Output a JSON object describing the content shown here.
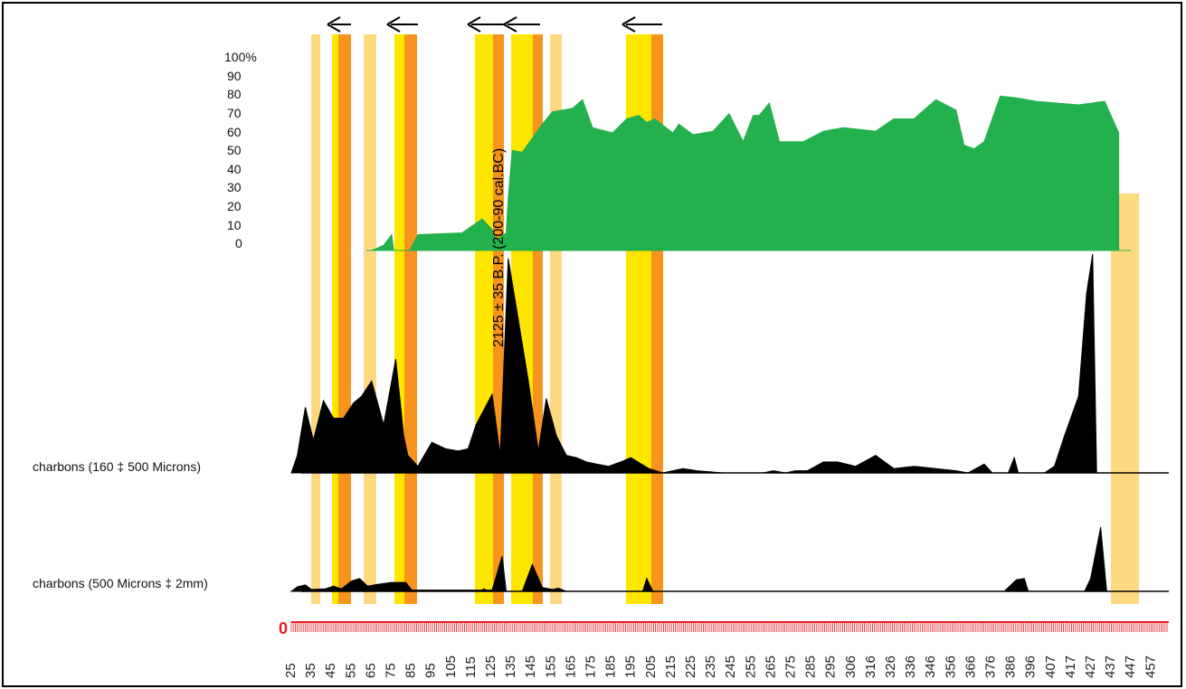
{
  "chart_data": {
    "type": "area",
    "x_axis_ticks": [
      "25",
      "35",
      "45",
      "55",
      "65",
      "75",
      "85",
      "95",
      "105",
      "115",
      "125",
      "135",
      "145",
      "155",
      "165",
      "175",
      "185",
      "195",
      "205",
      "215",
      "225",
      "235",
      "245",
      "255",
      "265",
      "275",
      "285",
      "295",
      "306",
      "316",
      "326",
      "336",
      "346",
      "356",
      "366",
      "376",
      "386",
      "396",
      "407",
      "417",
      "427",
      "437",
      "447",
      "457"
    ],
    "pct_ticks": [
      "100%",
      "90",
      "80",
      "70",
      "60",
      "50",
      "40",
      "30",
      "20",
      "10",
      "0"
    ],
    "annotation": "2125 ± 35 B.P. (200-90 cal.BC)",
    "axis_origin_label": "0",
    "series": [
      {
        "name": "",
        "color": "#22b14c",
        "ylim": [
          0,
          100
        ],
        "points": [
          [
            65,
            0
          ],
          [
            71,
            3
          ],
          [
            75,
            9
          ],
          [
            76,
            0
          ],
          [
            84,
            0
          ],
          [
            88,
            9
          ],
          [
            110,
            10
          ],
          [
            120,
            18
          ],
          [
            125,
            12
          ],
          [
            127,
            6
          ],
          [
            132,
            10
          ],
          [
            133,
            30
          ],
          [
            135,
            57
          ],
          [
            140,
            56
          ],
          [
            150,
            72
          ],
          [
            155,
            79
          ],
          [
            165,
            81
          ],
          [
            170,
            86
          ],
          [
            175,
            70
          ],
          [
            185,
            67
          ],
          [
            192,
            75
          ],
          [
            198,
            77
          ],
          [
            202,
            73
          ],
          [
            206,
            75
          ],
          [
            215,
            67
          ],
          [
            218,
            72
          ],
          [
            225,
            66
          ],
          [
            235,
            68
          ],
          [
            243,
            78
          ],
          [
            250,
            62
          ],
          [
            255,
            77
          ],
          [
            258,
            77
          ],
          [
            263,
            84
          ],
          [
            268,
            62
          ],
          [
            280,
            62
          ],
          [
            290,
            68
          ],
          [
            300,
            70
          ],
          [
            316,
            68
          ],
          [
            325,
            75
          ],
          [
            335,
            75
          ],
          [
            346,
            86
          ],
          [
            356,
            80
          ],
          [
            360,
            60
          ],
          [
            365,
            58
          ],
          [
            370,
            62
          ],
          [
            378,
            88
          ],
          [
            386,
            87
          ],
          [
            396,
            85
          ],
          [
            417,
            83
          ],
          [
            430,
            85
          ],
          [
            437,
            67
          ],
          [
            437,
            0
          ]
        ]
      },
      {
        "name": "charbons (160 ‡ 500 Microns)",
        "color": "#000000",
        "ylim": [
          0,
          100
        ],
        "points": [
          [
            25,
            0
          ],
          [
            28,
            8
          ],
          [
            32,
            30
          ],
          [
            36,
            15
          ],
          [
            41,
            33
          ],
          [
            46,
            25
          ],
          [
            51,
            25
          ],
          [
            56,
            32
          ],
          [
            60,
            35
          ],
          [
            65,
            42
          ],
          [
            71,
            22
          ],
          [
            77,
            52
          ],
          [
            81,
            17
          ],
          [
            83,
            8
          ],
          [
            88,
            3
          ],
          [
            95,
            14
          ],
          [
            102,
            11
          ],
          [
            108,
            10
          ],
          [
            113,
            11
          ],
          [
            117,
            22
          ],
          [
            125,
            36
          ],
          [
            129,
            8
          ],
          [
            133,
            98
          ],
          [
            140,
            59
          ],
          [
            143,
            42
          ],
          [
            148,
            10
          ],
          [
            152,
            34
          ],
          [
            157,
            17
          ],
          [
            162,
            8
          ],
          [
            167,
            7
          ],
          [
            172,
            5
          ],
          [
            177,
            4
          ],
          [
            183,
            3
          ],
          [
            189,
            5
          ],
          [
            194,
            7
          ],
          [
            203,
            2
          ],
          [
            210,
            0
          ],
          [
            220,
            2
          ],
          [
            227,
            1
          ],
          [
            240,
            0
          ],
          [
            260,
            0
          ],
          [
            265,
            1
          ],
          [
            271,
            0
          ],
          [
            276,
            1
          ],
          [
            282,
            1
          ],
          [
            290,
            5
          ],
          [
            297,
            5
          ],
          [
            306,
            3
          ],
          [
            316,
            8
          ],
          [
            325,
            2
          ],
          [
            335,
            3
          ],
          [
            346,
            2
          ],
          [
            356,
            1
          ],
          [
            362,
            0
          ],
          [
            370,
            4
          ],
          [
            374,
            0
          ],
          [
            382,
            0
          ],
          [
            385,
            7
          ],
          [
            387,
            0
          ],
          [
            400,
            0
          ],
          [
            405,
            3
          ],
          [
            410,
            17
          ],
          [
            417,
            35
          ],
          [
            421,
            82
          ],
          [
            424,
            100
          ],
          [
            426,
            0
          ]
        ]
      },
      {
        "name": "charbons (500 Microns ‡ 2mm)",
        "color": "#000000",
        "ylim": [
          0,
          100
        ],
        "points": [
          [
            25,
            0
          ],
          [
            28,
            7
          ],
          [
            32,
            10
          ],
          [
            35,
            3
          ],
          [
            42,
            4
          ],
          [
            46,
            8
          ],
          [
            50,
            4
          ],
          [
            55,
            16
          ],
          [
            59,
            20
          ],
          [
            63,
            8
          ],
          [
            68,
            11
          ],
          [
            75,
            14
          ],
          [
            82,
            14
          ],
          [
            85,
            2
          ],
          [
            120,
            2
          ],
          [
            121,
            4
          ],
          [
            122,
            2
          ],
          [
            125,
            2
          ],
          [
            130,
            55
          ],
          [
            132,
            0
          ],
          [
            140,
            0
          ],
          [
            145,
            42
          ],
          [
            150,
            6
          ],
          [
            155,
            3
          ],
          [
            158,
            5
          ],
          [
            162,
            0
          ],
          [
            200,
            0
          ],
          [
            202,
            20
          ],
          [
            205,
            0
          ],
          [
            380,
            0
          ],
          [
            386,
            18
          ],
          [
            390,
            20
          ],
          [
            392,
            0
          ],
          [
            420,
            0
          ],
          [
            423,
            20
          ],
          [
            428,
            100
          ],
          [
            431,
            0
          ]
        ]
      }
    ]
  }
}
